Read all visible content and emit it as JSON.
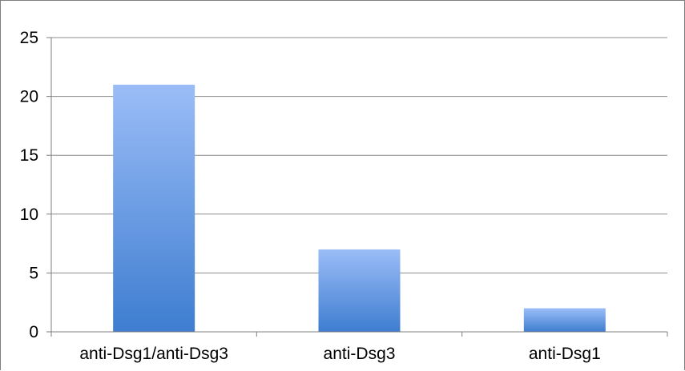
{
  "chart_data": {
    "type": "bar",
    "categories": [
      "anti-Dsg1/anti-Dsg3",
      "anti-Dsg3",
      "anti-Dsg1"
    ],
    "values": [
      21,
      7,
      2
    ],
    "title": "",
    "xlabel": "",
    "ylabel": "",
    "ylim": [
      0,
      25
    ],
    "yticks": [
      "0",
      "5",
      "10",
      "15",
      "20",
      "25"
    ],
    "grid": true,
    "legend": "none",
    "colors": {
      "bar_top": "#9bbdf7",
      "bar_bottom": "#3e7dd0",
      "gridline": "#8c8c8c",
      "axis": "#7f7f7f",
      "frame": "#7f7f7f"
    }
  }
}
